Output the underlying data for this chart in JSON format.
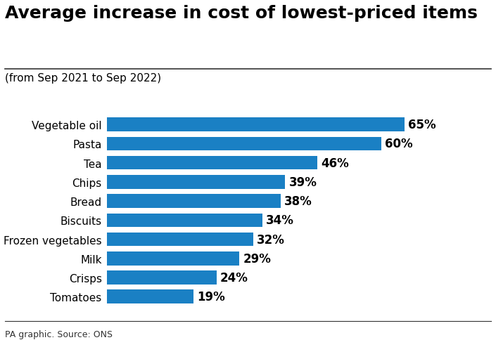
{
  "title": "Average increase in cost of lowest-priced items",
  "subtitle": "(from Sep 2021 to Sep 2022)",
  "source": "PA graphic. Source: ONS",
  "categories": [
    "Tomatoes",
    "Crisps",
    "Milk",
    "Frozen vegetables",
    "Biscuits",
    "Bread",
    "Chips",
    "Tea",
    "Pasta",
    "Vegetable oil"
  ],
  "values": [
    19,
    24,
    29,
    32,
    34,
    38,
    39,
    46,
    60,
    65
  ],
  "bar_color": "#1a80c4",
  "label_color": "#000000",
  "background_color": "#ffffff",
  "title_fontsize": 18,
  "subtitle_fontsize": 11,
  "label_fontsize": 12,
  "category_fontsize": 11,
  "source_fontsize": 9,
  "bar_height": 0.72,
  "xlim": [
    0,
    78
  ]
}
